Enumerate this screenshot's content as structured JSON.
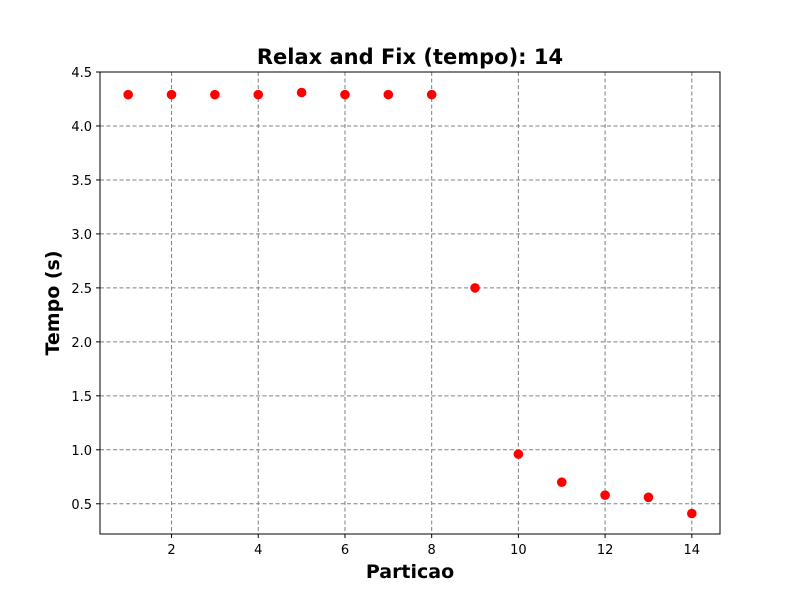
{
  "chart_data": {
    "type": "scatter",
    "title": "Relax and Fix (tempo): 14",
    "xlabel": "Particao",
    "ylabel": "Tempo (s)",
    "xlim": [
      0.35,
      14.65
    ],
    "ylim": [
      0.22,
      4.5
    ],
    "xticks": [
      2,
      4,
      6,
      8,
      10,
      12,
      14
    ],
    "yticks": [
      0.5,
      1.0,
      1.5,
      2.0,
      2.5,
      3.0,
      3.5,
      4.0,
      4.5
    ],
    "grid": true,
    "marker_color": "#ff0000",
    "points": [
      {
        "x": 1,
        "y": 4.29
      },
      {
        "x": 2,
        "y": 4.29
      },
      {
        "x": 3,
        "y": 4.29
      },
      {
        "x": 4,
        "y": 4.29
      },
      {
        "x": 5,
        "y": 4.31
      },
      {
        "x": 6,
        "y": 4.29
      },
      {
        "x": 7,
        "y": 4.29
      },
      {
        "x": 8,
        "y": 4.29
      },
      {
        "x": 9,
        "y": 2.5
      },
      {
        "x": 10,
        "y": 0.96
      },
      {
        "x": 11,
        "y": 0.7
      },
      {
        "x": 12,
        "y": 0.58
      },
      {
        "x": 13,
        "y": 0.56
      },
      {
        "x": 14,
        "y": 0.41
      }
    ]
  }
}
